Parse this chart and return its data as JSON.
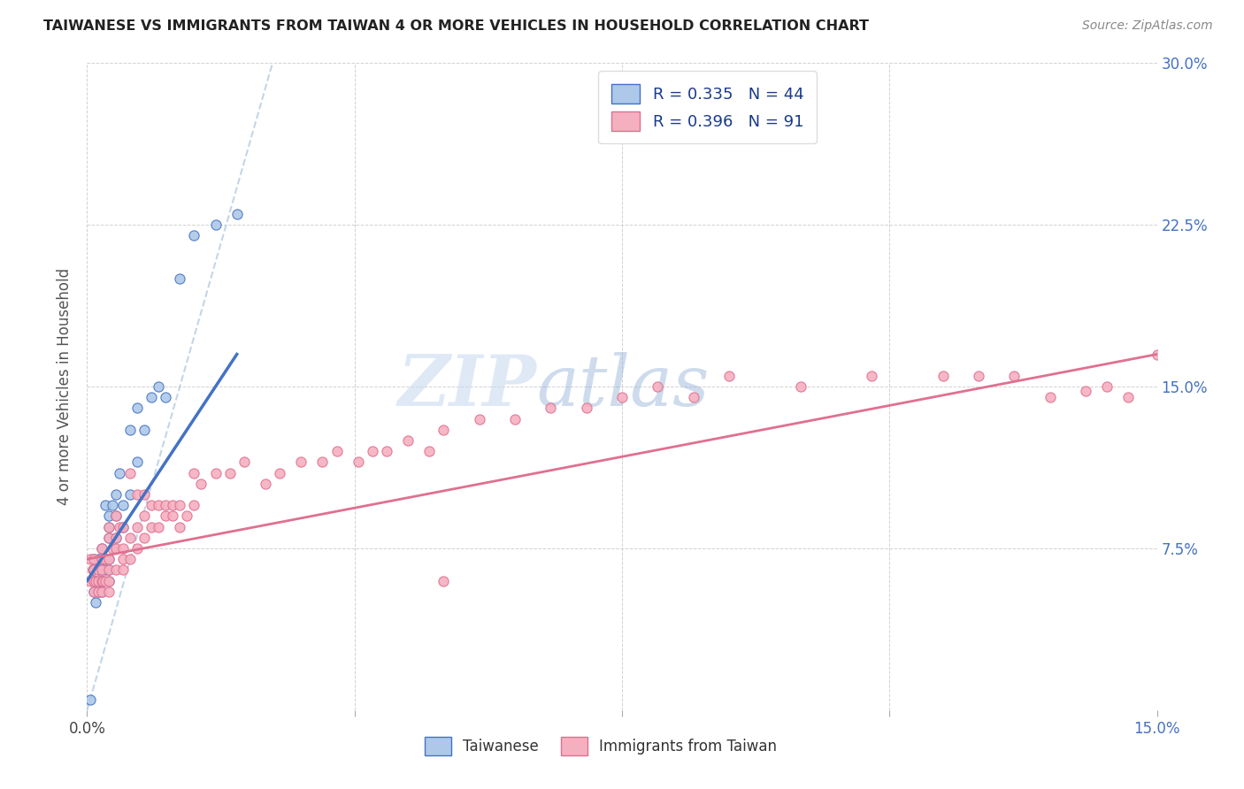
{
  "title": "TAIWANESE VS IMMIGRANTS FROM TAIWAN 4 OR MORE VEHICLES IN HOUSEHOLD CORRELATION CHART",
  "source": "Source: ZipAtlas.com",
  "ylabel": "4 or more Vehicles in Household",
  "xlim": [
    0.0,
    0.15
  ],
  "ylim": [
    0.0,
    0.3
  ],
  "color_taiwanese": "#adc8e8",
  "color_immigrants": "#f5b0c0",
  "color_line_taiwanese": "#4472c4",
  "color_line_immigrants": "#e07090",
  "color_dashed": "#b0c8e0",
  "watermark_zip": "ZIP",
  "watermark_atlas": "atlas",
  "taiwanese_x": [
    0.0005,
    0.0008,
    0.001,
    0.001,
    0.001,
    0.0012,
    0.0012,
    0.0015,
    0.0015,
    0.0015,
    0.0018,
    0.002,
    0.002,
    0.002,
    0.002,
    0.0022,
    0.0022,
    0.0025,
    0.0025,
    0.003,
    0.003,
    0.003,
    0.003,
    0.003,
    0.003,
    0.0035,
    0.004,
    0.004,
    0.004,
    0.0045,
    0.005,
    0.005,
    0.006,
    0.006,
    0.007,
    0.007,
    0.008,
    0.009,
    0.01,
    0.011,
    0.013,
    0.015,
    0.018,
    0.021
  ],
  "taiwanese_y": [
    0.005,
    0.065,
    0.06,
    0.07,
    0.055,
    0.05,
    0.06,
    0.055,
    0.065,
    0.07,
    0.06,
    0.055,
    0.065,
    0.07,
    0.075,
    0.06,
    0.07,
    0.065,
    0.095,
    0.06,
    0.065,
    0.07,
    0.08,
    0.085,
    0.09,
    0.095,
    0.08,
    0.09,
    0.1,
    0.11,
    0.085,
    0.095,
    0.1,
    0.13,
    0.115,
    0.14,
    0.13,
    0.145,
    0.15,
    0.145,
    0.2,
    0.22,
    0.225,
    0.23
  ],
  "immigrants_x": [
    0.0005,
    0.0005,
    0.0008,
    0.001,
    0.001,
    0.001,
    0.001,
    0.0012,
    0.0015,
    0.0015,
    0.0015,
    0.002,
    0.002,
    0.002,
    0.002,
    0.002,
    0.0022,
    0.0025,
    0.0025,
    0.003,
    0.003,
    0.003,
    0.003,
    0.003,
    0.003,
    0.0035,
    0.004,
    0.004,
    0.004,
    0.004,
    0.0045,
    0.005,
    0.005,
    0.005,
    0.005,
    0.006,
    0.006,
    0.006,
    0.007,
    0.007,
    0.007,
    0.008,
    0.008,
    0.008,
    0.009,
    0.009,
    0.01,
    0.01,
    0.011,
    0.011,
    0.012,
    0.012,
    0.013,
    0.013,
    0.014,
    0.015,
    0.015,
    0.016,
    0.018,
    0.02,
    0.022,
    0.025,
    0.027,
    0.03,
    0.033,
    0.035,
    0.038,
    0.04,
    0.042,
    0.045,
    0.048,
    0.05,
    0.055,
    0.06,
    0.065,
    0.07,
    0.075,
    0.08,
    0.085,
    0.09,
    0.1,
    0.11,
    0.12,
    0.125,
    0.13,
    0.135,
    0.14,
    0.143,
    0.146,
    0.15,
    0.05
  ],
  "immigrants_y": [
    0.06,
    0.07,
    0.065,
    0.055,
    0.06,
    0.065,
    0.07,
    0.06,
    0.055,
    0.06,
    0.065,
    0.055,
    0.06,
    0.065,
    0.07,
    0.075,
    0.06,
    0.06,
    0.07,
    0.055,
    0.06,
    0.065,
    0.07,
    0.08,
    0.085,
    0.075,
    0.065,
    0.075,
    0.08,
    0.09,
    0.085,
    0.065,
    0.07,
    0.075,
    0.085,
    0.07,
    0.08,
    0.11,
    0.075,
    0.085,
    0.1,
    0.08,
    0.09,
    0.1,
    0.085,
    0.095,
    0.085,
    0.095,
    0.09,
    0.095,
    0.09,
    0.095,
    0.085,
    0.095,
    0.09,
    0.095,
    0.11,
    0.105,
    0.11,
    0.11,
    0.115,
    0.105,
    0.11,
    0.115,
    0.115,
    0.12,
    0.115,
    0.12,
    0.12,
    0.125,
    0.12,
    0.13,
    0.135,
    0.135,
    0.14,
    0.14,
    0.145,
    0.15,
    0.145,
    0.155,
    0.15,
    0.155,
    0.155,
    0.155,
    0.155,
    0.145,
    0.148,
    0.15,
    0.145,
    0.165,
    0.06
  ],
  "tai_line_x": [
    0.0,
    0.021
  ],
  "tai_line_y": [
    0.06,
    0.165
  ],
  "imm_line_x": [
    0.0,
    0.15
  ],
  "imm_line_y": [
    0.07,
    0.165
  ],
  "dash_line_x": [
    0.0,
    0.026
  ],
  "dash_line_y": [
    0.0,
    0.3
  ]
}
